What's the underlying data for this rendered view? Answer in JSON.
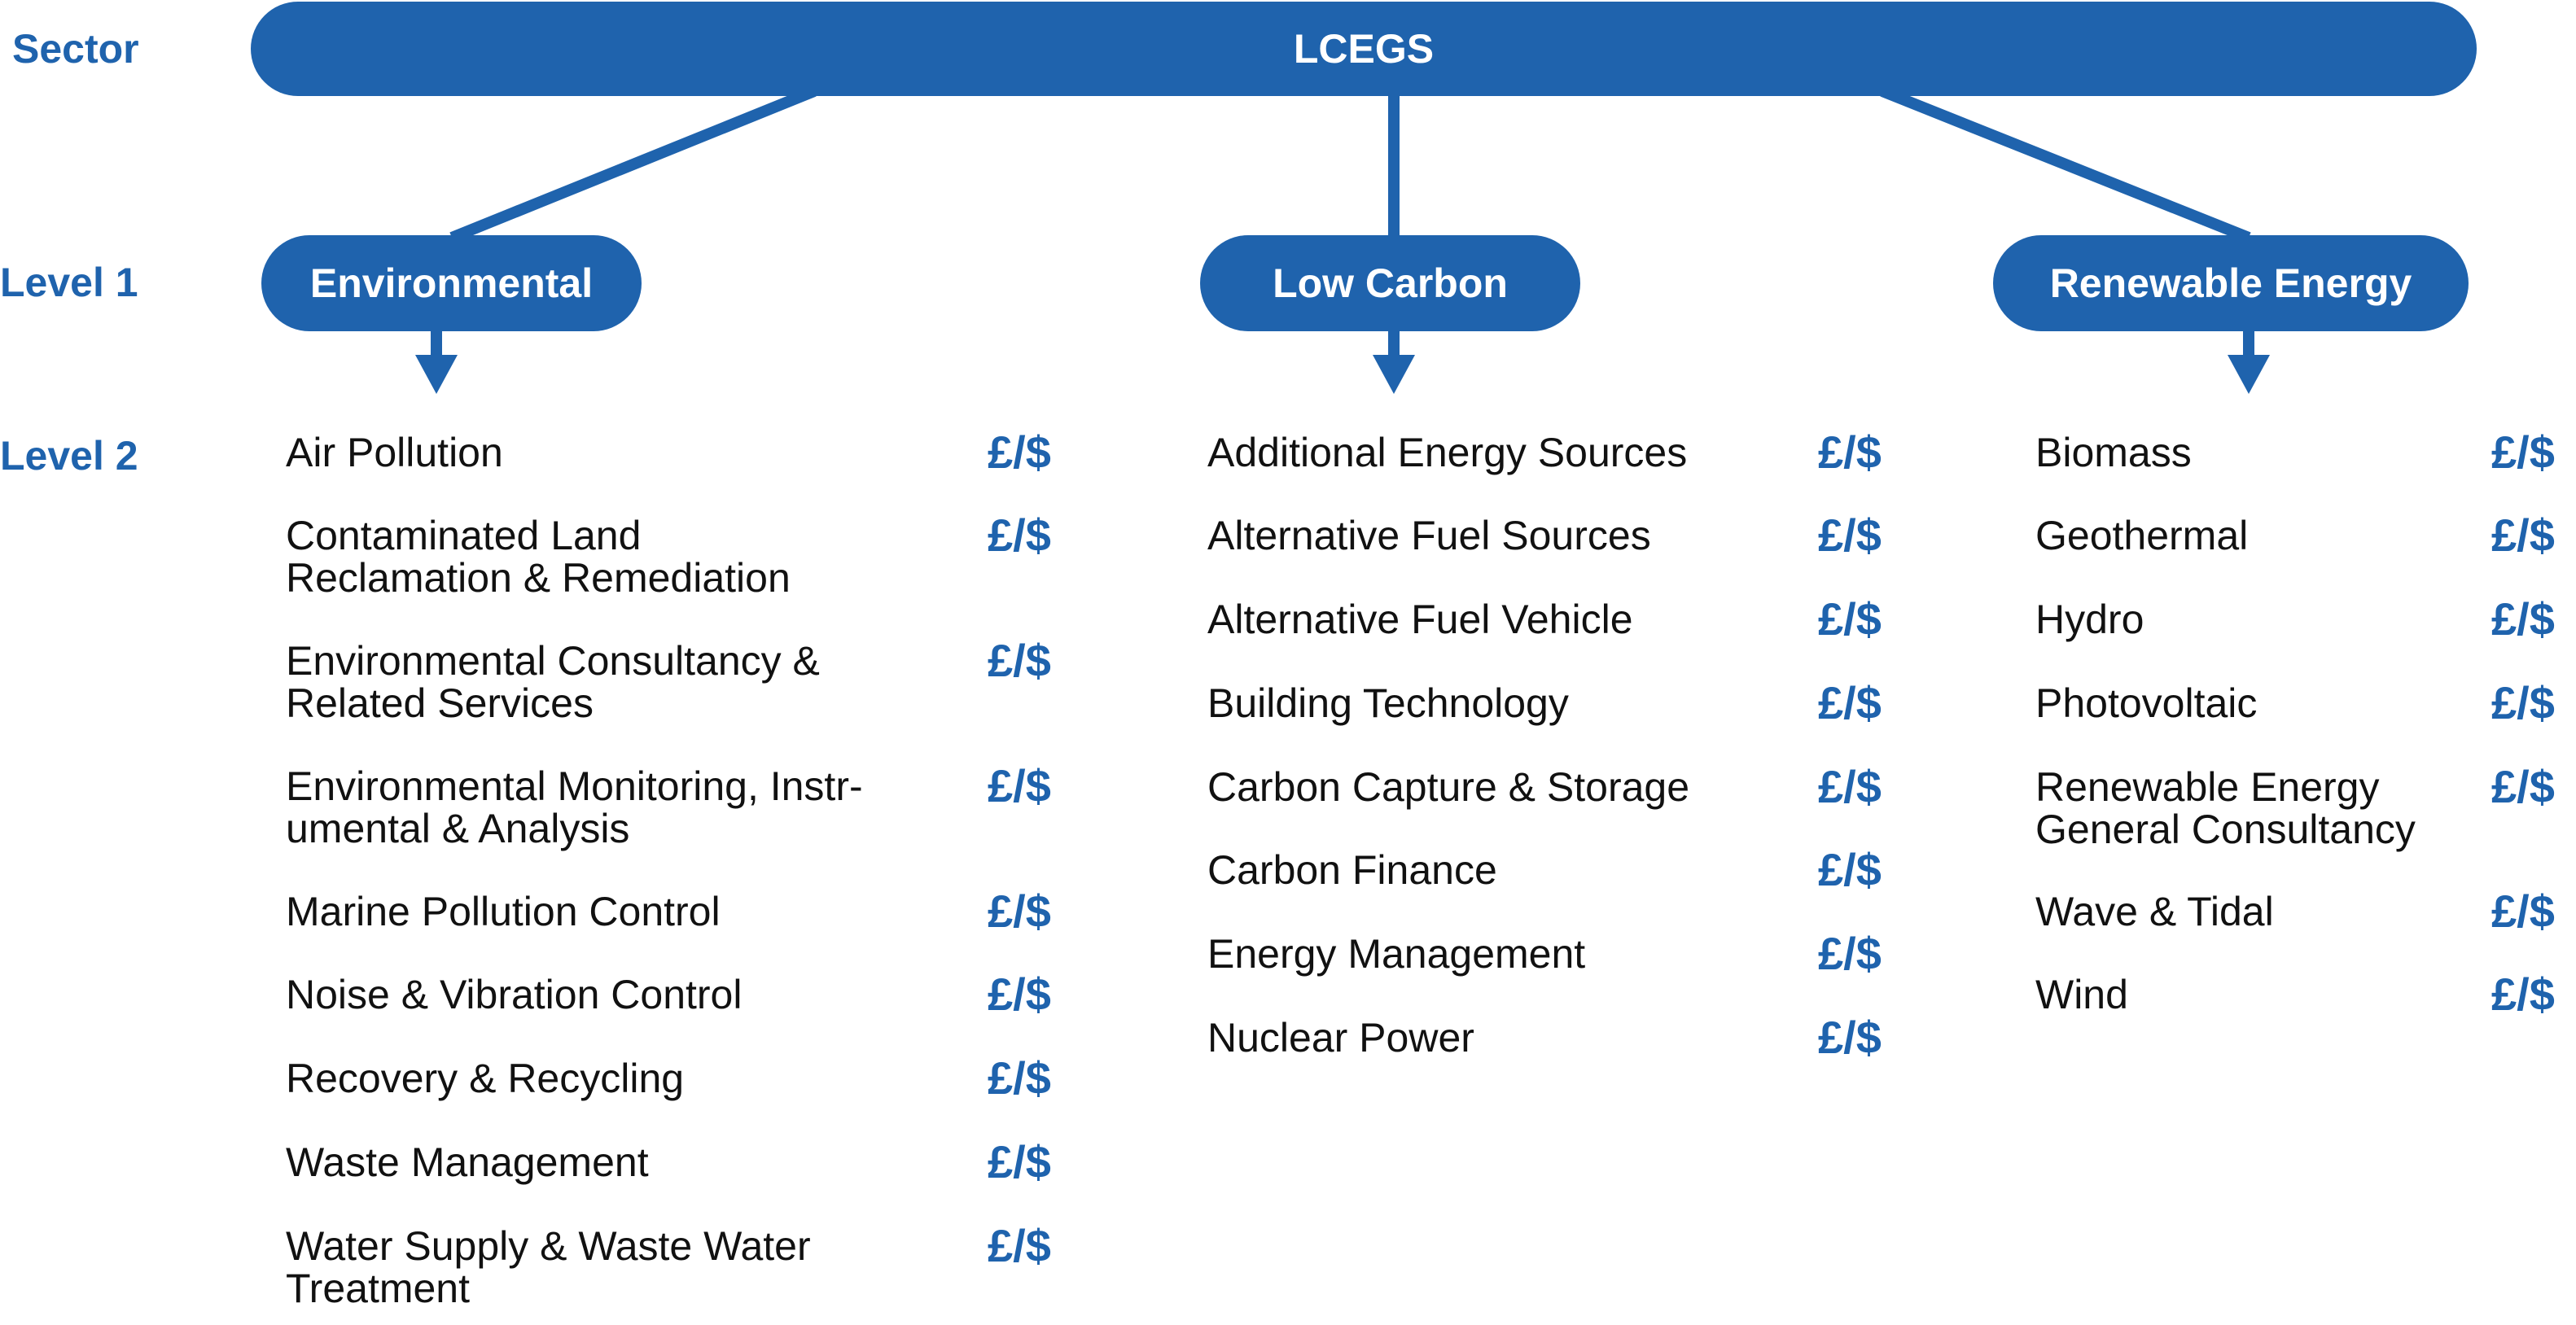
{
  "row_labels": {
    "sector": "Sector",
    "level1": "Level 1",
    "level2": "Level 2"
  },
  "sector": {
    "label": "LCEGS"
  },
  "columns": [
    {
      "label": "Environmental",
      "items": [
        {
          "lines": [
            "Air Pollution"
          ],
          "value": "£/$"
        },
        {
          "lines": [
            "Contaminated Land",
            "Reclamation & Remediation"
          ],
          "value": "£/$"
        },
        {
          "lines": [
            "Environmental Consultancy &",
            "Related Services"
          ],
          "value": "£/$"
        },
        {
          "lines": [
            "Environmental Monitoring, Instr-",
            "umental & Analysis"
          ],
          "value": "£/$"
        },
        {
          "lines": [
            "Marine Pollution Control"
          ],
          "value": "£/$"
        },
        {
          "lines": [
            "Noise & Vibration Control"
          ],
          "value": "£/$"
        },
        {
          "lines": [
            "Recovery & Recycling"
          ],
          "value": "£/$"
        },
        {
          "lines": [
            "Waste Management"
          ],
          "value": "£/$"
        },
        {
          "lines": [
            "Water Supply & Waste Water",
            "Treatment"
          ],
          "value": "£/$"
        }
      ]
    },
    {
      "label": "Low Carbon",
      "items": [
        {
          "lines": [
            "Additional Energy Sources"
          ],
          "value": "£/$"
        },
        {
          "lines": [
            "Alternative Fuel Sources"
          ],
          "value": "£/$"
        },
        {
          "lines": [
            "Alternative Fuel Vehicle"
          ],
          "value": "£/$"
        },
        {
          "lines": [
            "Building Technology"
          ],
          "value": "£/$"
        },
        {
          "lines": [
            "Carbon Capture & Storage"
          ],
          "value": "£/$"
        },
        {
          "lines": [
            "Carbon Finance"
          ],
          "value": "£/$"
        },
        {
          "lines": [
            "Energy Management"
          ],
          "value": "£/$"
        },
        {
          "lines": [
            "Nuclear Power"
          ],
          "value": "£/$"
        }
      ]
    },
    {
      "label": "Renewable Energy",
      "items": [
        {
          "lines": [
            "Biomass"
          ],
          "value": "£/$"
        },
        {
          "lines": [
            "Geothermal"
          ],
          "value": "£/$"
        },
        {
          "lines": [
            "Hydro"
          ],
          "value": "£/$"
        },
        {
          "lines": [
            "Photovoltaic"
          ],
          "value": "£/$"
        },
        {
          "lines": [
            "Renewable Energy",
            "General Consultancy"
          ],
          "value": "£/$"
        },
        {
          "lines": [
            "Wave & Tidal"
          ],
          "value": "£/$"
        },
        {
          "lines": [
            "Wind"
          ],
          "value": "£/$"
        }
      ]
    }
  ],
  "colors": {
    "accent": "#1f63ad",
    "text": "#111111",
    "background": "#ffffff"
  }
}
